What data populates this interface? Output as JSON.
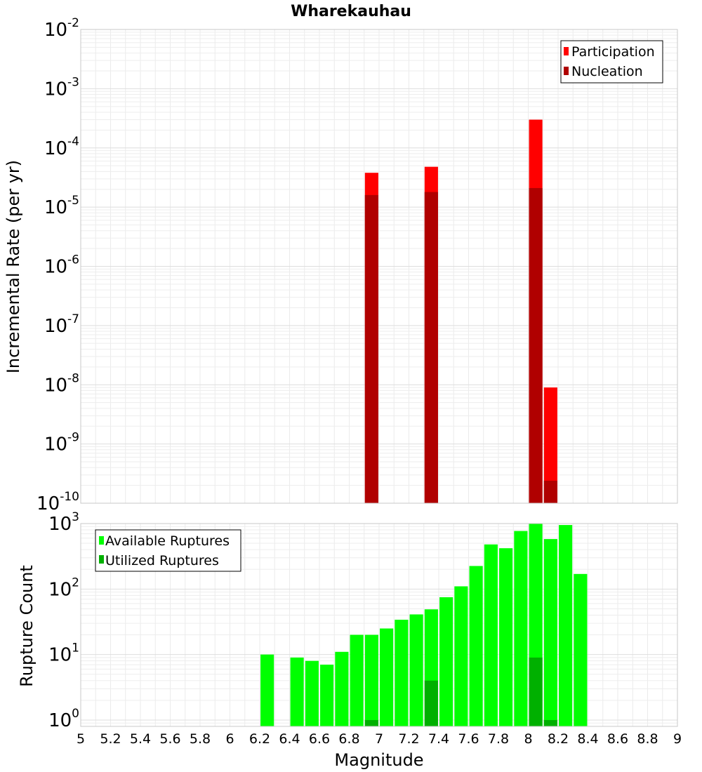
{
  "chart_data": [
    {
      "type": "bar",
      "title": "Wharekauhau",
      "xlabel": "",
      "ylabel": "Incremental Rate (per yr)",
      "yscale": "log",
      "ylim": [
        1e-10,
        0.01
      ],
      "xlim": [
        5,
        9
      ],
      "bar_width": 0.09,
      "grid": true,
      "legend_placement": "top-right",
      "y_ticks": [
        {
          "base": "10",
          "exp": "-10"
        },
        {
          "base": "10",
          "exp": "-9"
        },
        {
          "base": "10",
          "exp": "-8"
        },
        {
          "base": "10",
          "exp": "-7"
        },
        {
          "base": "10",
          "exp": "-6"
        },
        {
          "base": "10",
          "exp": "-5"
        },
        {
          "base": "10",
          "exp": "-4"
        },
        {
          "base": "10",
          "exp": "-3"
        },
        {
          "base": "10",
          "exp": "-2"
        }
      ],
      "series": [
        {
          "name": "Participation",
          "color": "#ff0000",
          "points": [
            [
              6.95,
              3.8e-05
            ],
            [
              7.35,
              4.8e-05
            ],
            [
              8.05,
              0.0003
            ],
            [
              8.15,
              9e-09
            ]
          ]
        },
        {
          "name": "Nucleation",
          "color": "#b00000",
          "points": [
            [
              6.95,
              1.6e-05
            ],
            [
              7.35,
              1.8e-05
            ],
            [
              8.05,
              2.1e-05
            ],
            [
              8.15,
              2.4e-10
            ]
          ]
        }
      ]
    },
    {
      "type": "bar",
      "title": "",
      "xlabel": "Magnitude",
      "ylabel": "Rupture Count",
      "yscale": "log",
      "ylim": [
        0.8,
        1000
      ],
      "xlim": [
        5,
        9
      ],
      "bar_width": 0.09,
      "grid": true,
      "legend_placement": "top-left",
      "y_ticks": [
        {
          "base": "10",
          "exp": "0",
          "value": 1
        },
        {
          "base": "10",
          "exp": "1",
          "value": 10
        },
        {
          "base": "10",
          "exp": "2",
          "value": 100
        },
        {
          "base": "10",
          "exp": "3",
          "value": 1000
        }
      ],
      "x_ticks": [
        "5",
        "5.2",
        "5.4",
        "5.6",
        "5.8",
        "6",
        "6.2",
        "6.4",
        "6.6",
        "6.8",
        "7",
        "7.2",
        "7.4",
        "7.6",
        "7.8",
        "8",
        "8.2",
        "8.4",
        "8.6",
        "8.8",
        "9"
      ],
      "series": [
        {
          "name": "Available Ruptures",
          "color": "#00ff00",
          "points": [
            [
              6.25,
              10
            ],
            [
              6.45,
              9
            ],
            [
              6.55,
              8
            ],
            [
              6.65,
              7
            ],
            [
              6.75,
              11
            ],
            [
              6.85,
              20
            ],
            [
              6.95,
              20
            ],
            [
              7.05,
              25
            ],
            [
              7.15,
              34
            ],
            [
              7.25,
              41
            ],
            [
              7.35,
              49
            ],
            [
              7.45,
              75
            ],
            [
              7.55,
              110
            ],
            [
              7.65,
              225
            ],
            [
              7.75,
              480
            ],
            [
              7.85,
              420
            ],
            [
              7.95,
              770
            ],
            [
              8.05,
              1000
            ],
            [
              8.15,
              580
            ],
            [
              8.25,
              950
            ],
            [
              8.35,
              170
            ]
          ]
        },
        {
          "name": "Utilized Ruptures",
          "color": "#00b000",
          "points": [
            [
              6.95,
              1
            ],
            [
              7.35,
              4
            ],
            [
              8.05,
              9
            ],
            [
              8.15,
              1
            ]
          ]
        }
      ]
    }
  ]
}
